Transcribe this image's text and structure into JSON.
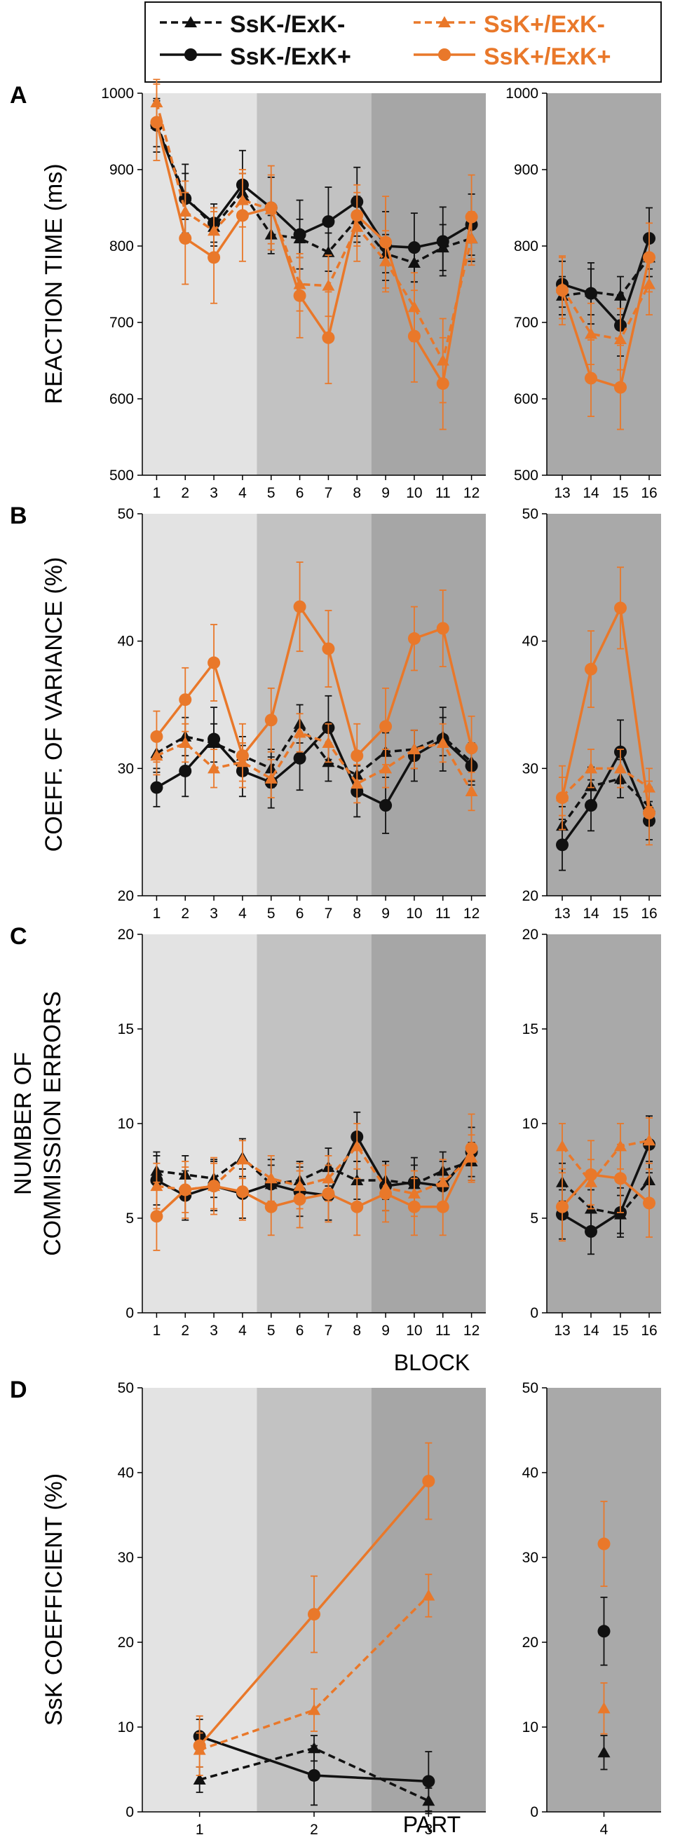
{
  "figure": {
    "legend": [
      {
        "label": "SsK-/ExK-",
        "series": "s1"
      },
      {
        "label": "SsK+/ExK-",
        "series": "s3"
      },
      {
        "label": "SsK-/ExK+",
        "series": "s2"
      },
      {
        "label": "SsK+/ExK+",
        "series": "s4"
      }
    ],
    "colors": {
      "black": "#111111",
      "orange": "#e9782a",
      "bg1": "#e3e3e3",
      "bg2": "#c2c2c2",
      "bg3": "#a6a6a6",
      "bg4": "#a9a9a9"
    }
  },
  "chart_data": [
    {
      "panel": "A",
      "type": "line",
      "ylabel": "REACTION TIME (ms)",
      "ylim": [
        500,
        1000
      ],
      "yticks": [
        "500",
        "600",
        "700",
        "800",
        "900",
        "1000"
      ],
      "left_categories": [
        "1",
        "2",
        "3",
        "4",
        "5",
        "6",
        "7",
        "8",
        "9",
        "10",
        "11",
        "12"
      ],
      "right_categories": [
        "13",
        "14",
        "15",
        "16"
      ],
      "xlabel": "",
      "series": [
        {
          "name": "SsK-/ExK-",
          "marker": "triangle",
          "dash": true,
          "color": "black",
          "values": [
            960,
            865,
            825,
            870,
            815,
            810,
            792,
            835,
            790,
            778,
            798,
            810,
            735,
            740,
            735,
            785
          ],
          "errors": [
            30,
            30,
            25,
            25,
            25,
            25,
            25,
            30,
            25,
            25,
            30,
            30,
            25,
            30,
            25,
            25
          ]
        },
        {
          "name": "SsK-/ExK+",
          "marker": "circle",
          "dash": false,
          "color": "black",
          "values": [
            958,
            862,
            830,
            880,
            850,
            815,
            832,
            858,
            800,
            798,
            806,
            828,
            750,
            738,
            696,
            810
          ],
          "errors": [
            35,
            45,
            25,
            45,
            40,
            45,
            45,
            45,
            45,
            45,
            45,
            40,
            30,
            40,
            40,
            40
          ]
        },
        {
          "name": "SsK+/ExK-",
          "marker": "triangle",
          "dash": true,
          "color": "orange",
          "values": [
            988,
            845,
            820,
            860,
            848,
            750,
            748,
            825,
            780,
            720,
            650,
            810,
            745,
            685,
            678,
            750
          ],
          "errors": [
            30,
            40,
            30,
            35,
            45,
            35,
            40,
            45,
            40,
            45,
            55,
            35,
            40,
            40,
            40,
            40
          ]
        },
        {
          "name": "SsK+/ExK+",
          "marker": "circle",
          "dash": false,
          "color": "orange",
          "values": [
            962,
            810,
            785,
            840,
            850,
            735,
            680,
            840,
            805,
            682,
            620,
            838,
            742,
            627,
            615,
            785
          ],
          "errors": [
            50,
            60,
            60,
            60,
            55,
            55,
            60,
            40,
            60,
            60,
            60,
            55,
            45,
            50,
            55,
            45
          ]
        }
      ]
    },
    {
      "panel": "B",
      "type": "line",
      "ylabel": "COEFF. OF VARIANCE (%)",
      "ylim": [
        20,
        50
      ],
      "yticks": [
        "20",
        "30",
        "40",
        "50"
      ],
      "left_categories": [
        "1",
        "2",
        "3",
        "4",
        "5",
        "6",
        "7",
        "8",
        "9",
        "10",
        "11",
        "12"
      ],
      "right_categories": [
        "13",
        "14",
        "15",
        "16"
      ],
      "xlabel": "",
      "series": [
        {
          "name": "SsK-/ExK-",
          "marker": "triangle",
          "dash": true,
          "color": "black",
          "values": [
            31.2,
            32.5,
            32.0,
            31.0,
            30.0,
            33.5,
            30.5,
            29.5,
            31.3,
            31.5,
            32.5,
            30.5,
            25.5,
            28.6,
            29.2,
            27.0
          ],
          "errors": [
            1.5,
            1.5,
            1.5,
            1.5,
            1.5,
            1.5,
            1.5,
            1.5,
            1.5,
            1.5,
            1.5,
            1.5,
            1.5,
            1.5,
            1.5,
            1.5
          ]
        },
        {
          "name": "SsK-/ExK+",
          "marker": "circle",
          "dash": false,
          "color": "black",
          "values": [
            28.5,
            29.8,
            32.3,
            29.8,
            28.9,
            30.8,
            33.2,
            28.2,
            27.1,
            31.0,
            32.3,
            30.2,
            24.0,
            27.1,
            31.3,
            25.9
          ],
          "errors": [
            1.5,
            2.0,
            2.5,
            2.0,
            2.0,
            2.5,
            2.5,
            2.0,
            2.2,
            2.0,
            2.5,
            1.5,
            2.0,
            2.0,
            2.5,
            1.5
          ]
        },
        {
          "name": "SsK+/ExK-",
          "marker": "triangle",
          "dash": true,
          "color": "orange",
          "values": [
            31.0,
            32.0,
            30.0,
            30.5,
            29.2,
            32.8,
            32.0,
            28.8,
            30.0,
            31.5,
            32.0,
            28.2,
            27.8,
            30.0,
            30.0,
            28.5
          ],
          "errors": [
            1.5,
            1.5,
            1.5,
            1.5,
            1.5,
            1.5,
            1.5,
            1.5,
            1.5,
            1.5,
            1.5,
            1.5,
            1.5,
            1.5,
            1.5,
            1.5
          ]
        },
        {
          "name": "SsK+/ExK+",
          "marker": "circle",
          "dash": false,
          "color": "orange",
          "values": [
            32.5,
            35.4,
            38.3,
            31.0,
            33.8,
            42.7,
            39.4,
            31.0,
            33.3,
            40.2,
            41.0,
            31.6,
            27.7,
            37.8,
            42.6,
            26.5
          ],
          "errors": [
            2.0,
            2.5,
            3.0,
            2.5,
            2.5,
            3.5,
            3.0,
            2.5,
            3.0,
            2.5,
            3.0,
            2.5,
            2.5,
            3.0,
            3.2,
            2.5
          ]
        }
      ]
    },
    {
      "panel": "C",
      "type": "line",
      "ylabel": "NUMBER OF COMMISSION ERRORS",
      "ylim": [
        0,
        20
      ],
      "yticks": [
        "0",
        "5",
        "10",
        "15",
        "20"
      ],
      "left_categories": [
        "1",
        "2",
        "3",
        "4",
        "5",
        "6",
        "7",
        "8",
        "9",
        "10",
        "11",
        "12"
      ],
      "right_categories": [
        "13",
        "14",
        "15",
        "16"
      ],
      "xlabel": "BLOCK",
      "series": [
        {
          "name": "SsK-/ExK-",
          "marker": "triangle",
          "dash": true,
          "color": "black",
          "values": [
            7.5,
            7.3,
            7.1,
            8.2,
            6.8,
            7.0,
            7.7,
            7.0,
            7.0,
            6.8,
            7.5,
            8.0,
            6.9,
            5.5,
            5.2,
            7.0
          ],
          "errors": [
            1.0,
            1.0,
            1.0,
            1.0,
            1.0,
            1.0,
            1.0,
            1.0,
            1.0,
            1.0,
            1.0,
            1.0,
            1.0,
            1.0,
            1.0,
            1.0
          ]
        },
        {
          "name": "SsK-/ExK+",
          "marker": "circle",
          "dash": false,
          "color": "black",
          "values": [
            7.0,
            6.2,
            6.7,
            6.3,
            6.8,
            6.4,
            6.2,
            9.3,
            6.7,
            6.9,
            6.7,
            8.5,
            5.2,
            4.3,
            5.3,
            8.9
          ],
          "errors": [
            1.3,
            1.3,
            1.3,
            1.3,
            1.3,
            1.3,
            1.3,
            1.3,
            1.3,
            1.3,
            1.3,
            1.3,
            1.3,
            1.2,
            1.3,
            1.5
          ]
        },
        {
          "name": "SsK+/ExK-",
          "marker": "triangle",
          "dash": true,
          "color": "orange",
          "values": [
            6.7,
            6.5,
            6.7,
            8.1,
            7.1,
            6.7,
            7.1,
            8.8,
            6.6,
            6.3,
            6.9,
            8.2,
            8.8,
            6.9,
            8.8,
            9.1
          ],
          "errors": [
            1.2,
            1.2,
            1.2,
            1.0,
            1.2,
            1.2,
            1.2,
            1.2,
            1.2,
            1.2,
            1.2,
            1.2,
            1.2,
            1.2,
            1.2,
            1.2
          ]
        },
        {
          "name": "SsK+/ExK+",
          "marker": "circle",
          "dash": false,
          "color": "orange",
          "values": [
            5.1,
            6.5,
            6.7,
            6.4,
            5.6,
            6.0,
            6.3,
            5.6,
            6.3,
            5.6,
            5.6,
            8.7,
            5.6,
            7.3,
            7.1,
            5.8
          ],
          "errors": [
            1.8,
            1.5,
            1.5,
            1.5,
            1.5,
            1.5,
            1.5,
            1.5,
            1.5,
            1.5,
            1.5,
            1.8,
            1.8,
            1.8,
            1.8,
            1.8
          ]
        }
      ]
    },
    {
      "panel": "D",
      "type": "line",
      "ylabel": "SsK COEFFICIENT (%)",
      "ylim": [
        0,
        50
      ],
      "yticks": [
        "0",
        "10",
        "20",
        "30",
        "40",
        "50"
      ],
      "left_categories": [
        "1",
        "2",
        "3"
      ],
      "right_categories": [
        "4"
      ],
      "xlabel": "PART",
      "series": [
        {
          "name": "SsK-/ExK-",
          "marker": "triangle",
          "dash": true,
          "color": "black",
          "values": [
            3.8,
            7.5,
            1.3,
            7.0
          ],
          "errors": [
            1.5,
            1.5,
            1.5,
            2.0
          ]
        },
        {
          "name": "SsK-/ExK+",
          "marker": "circle",
          "dash": false,
          "color": "black",
          "values": [
            8.9,
            4.3,
            3.6,
            21.3
          ],
          "errors": [
            2.0,
            3.5,
            3.5,
            4.0
          ]
        },
        {
          "name": "SsK+/ExK-",
          "marker": "triangle",
          "dash": true,
          "color": "orange",
          "values": [
            7.3,
            12.0,
            25.5,
            12.2
          ],
          "errors": [
            2.0,
            2.5,
            2.5,
            3.0
          ]
        },
        {
          "name": "SsK+/ExK+",
          "marker": "circle",
          "dash": false,
          "color": "orange",
          "values": [
            7.8,
            23.3,
            39.0,
            31.6
          ],
          "errors": [
            3.5,
            4.5,
            4.5,
            5.0
          ]
        }
      ]
    }
  ]
}
